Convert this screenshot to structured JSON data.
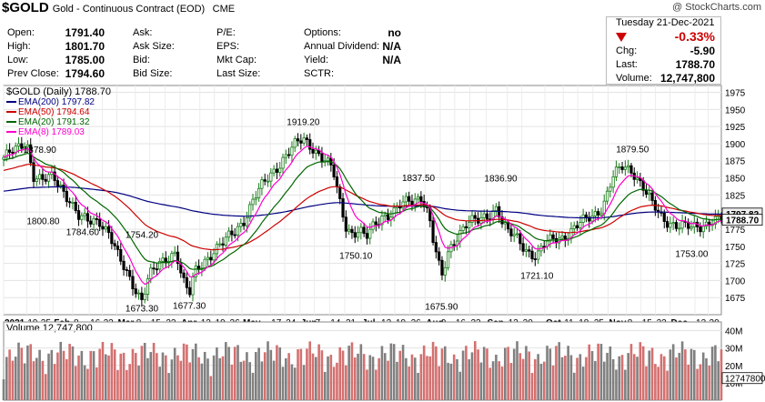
{
  "header": {
    "symbol": "$GOLD",
    "name": "Gold - Continuous Contract (EOD)",
    "exchange": "CME",
    "watermark": "@ StockCharts.com"
  },
  "quote": {
    "date": "Tuesday   21-Dec-2021",
    "change_pct": "-0.33%",
    "chg_label": "Chg:",
    "chg": "-5.90",
    "last_label": "Last:",
    "last": "1788.70",
    "volume_label": "Volume:",
    "volume": "12,747,800"
  },
  "stats": [
    {
      "label": "Open:",
      "value": "1791.40"
    },
    {
      "label": "High:",
      "value": "1801.70"
    },
    {
      "label": "Low:",
      "value": "1785.00"
    },
    {
      "label": "Prev Close:",
      "value": "1794.60"
    },
    {
      "label": "Ask:",
      "value": ""
    },
    {
      "label": "Ask Size:",
      "value": ""
    },
    {
      "label": "Bid:",
      "value": ""
    },
    {
      "label": "Bid Size:",
      "value": ""
    },
    {
      "label": "P/E:",
      "value": ""
    },
    {
      "label": "EPS:",
      "value": ""
    },
    {
      "label": "Mkt Cap:",
      "value": ""
    },
    {
      "label": "Last Size:",
      "value": ""
    },
    {
      "label": "Options:",
      "value": "no"
    },
    {
      "label": "Annual Dividend:",
      "value": "N/A"
    },
    {
      "label": "Yield:",
      "value": "N/A"
    },
    {
      "label": "SCTR:",
      "value": ""
    }
  ],
  "colors": {
    "ema200": "#000080",
    "ema50": "#cc0000",
    "ema20": "#006600",
    "ema8": "#ff00cc",
    "up": "#1a7d1a",
    "down": "#000000",
    "vol_up": "#808080",
    "vol_down": "#d47070",
    "down_arrow": "#cc0000"
  },
  "chart_data": {
    "type": "candlestick",
    "title": "$GOLD (Daily) 1788.70",
    "legend": [
      {
        "name": "EMA(200)",
        "value": "1797.82",
        "color": "#000080"
      },
      {
        "name": "EMA(50)",
        "value": "1794.64",
        "color": "#cc0000"
      },
      {
        "name": "EMA(20)",
        "value": "1791.32",
        "color": "#006600"
      },
      {
        "name": "EMA(8)",
        "value": "1789.03",
        "color": "#ff00cc"
      }
    ],
    "ylim": [
      1650,
      1985
    ],
    "yticks": [
      1675,
      1700,
      1725,
      1750,
      1775,
      1800,
      1825,
      1850,
      1875,
      1900,
      1925,
      1950,
      1975
    ],
    "last_price_tags": [
      "1797.82",
      "1788.70"
    ],
    "x_ticks": [
      {
        "label": "2021",
        "t": 0,
        "bold": true
      },
      {
        "label": "19",
        "t": 0.035
      },
      {
        "label": "25",
        "t": 0.055
      },
      {
        "label": "Feb",
        "t": 0.075,
        "bold": true
      },
      {
        "label": "8",
        "t": 0.105
      },
      {
        "label": "16",
        "t": 0.13
      },
      {
        "label": "22",
        "t": 0.15
      },
      {
        "label": "Mar",
        "t": 0.172,
        "bold": true
      },
      {
        "label": "8",
        "t": 0.2
      },
      {
        "label": "15",
        "t": 0.222
      },
      {
        "label": "22",
        "t": 0.245
      },
      {
        "label": "Apr",
        "t": 0.268,
        "bold": true
      },
      {
        "label": "12",
        "t": 0.298
      },
      {
        "label": "19",
        "t": 0.32
      },
      {
        "label": "26",
        "t": 0.342
      },
      {
        "label": "May",
        "t": 0.362,
        "bold": true
      },
      {
        "label": "17",
        "t": 0.405
      },
      {
        "label": "24",
        "t": 0.427
      },
      {
        "label": "Jun",
        "t": 0.45,
        "bold": true
      },
      {
        "label": "7",
        "t": 0.472
      },
      {
        "label": "14",
        "t": 0.495
      },
      {
        "label": "21",
        "t": 0.518
      },
      {
        "label": "Jul",
        "t": 0.543,
        "bold": true
      },
      {
        "label": "12",
        "t": 0.572
      },
      {
        "label": "19",
        "t": 0.594
      },
      {
        "label": "26",
        "t": 0.617
      },
      {
        "label": "Aug",
        "t": 0.64,
        "bold": true
      },
      {
        "label": "9",
        "t": 0.663
      },
      {
        "label": "16",
        "t": 0.685
      },
      {
        "label": "23",
        "t": 0.708
      },
      {
        "label": "Sep",
        "t": 0.733,
        "bold": true
      },
      {
        "label": "13",
        "t": 0.765
      },
      {
        "label": "20",
        "t": 0.787
      },
      {
        "label": "Oct",
        "t": 0.822,
        "bold": true
      },
      {
        "label": "11",
        "t": 0.85
      },
      {
        "label": "18",
        "t": 0.872
      },
      {
        "label": "25",
        "t": 0.895
      },
      {
        "label": "Nov",
        "t": 0.918,
        "bold": true
      },
      {
        "label": "8",
        "t": 0.946
      },
      {
        "label": "15",
        "t": 0.968
      },
      {
        "label": "22",
        "t": 0.99
      },
      {
        "label": "Dec",
        "t": 1.012,
        "bold": true
      },
      {
        "label": "13",
        "t": 1.05
      },
      {
        "label": "20",
        "t": 1.07
      }
    ],
    "price_path": [
      [
        0,
        1880
      ],
      [
        0.02,
        1890
      ],
      [
        0.035,
        1905
      ],
      [
        0.045,
        1855
      ],
      [
        0.06,
        1845
      ],
      [
        0.075,
        1850
      ],
      [
        0.085,
        1840
      ],
      [
        0.1,
        1820
      ],
      [
        0.115,
        1790
      ],
      [
        0.13,
        1785
      ],
      [
        0.145,
        1790
      ],
      [
        0.16,
        1770
      ],
      [
        0.175,
        1730
      ],
      [
        0.19,
        1705
      ],
      [
        0.2,
        1690
      ],
      [
        0.21,
        1673
      ],
      [
        0.22,
        1705
      ],
      [
        0.235,
        1720
      ],
      [
        0.25,
        1735
      ],
      [
        0.262,
        1745
      ],
      [
        0.272,
        1700
      ],
      [
        0.282,
        1677
      ],
      [
        0.29,
        1710
      ],
      [
        0.305,
        1730
      ],
      [
        0.32,
        1745
      ],
      [
        0.335,
        1755
      ],
      [
        0.35,
        1770
      ],
      [
        0.365,
        1790
      ],
      [
        0.38,
        1820
      ],
      [
        0.395,
        1840
      ],
      [
        0.41,
        1860
      ],
      [
        0.425,
        1880
      ],
      [
        0.44,
        1895
      ],
      [
        0.455,
        1905
      ],
      [
        0.47,
        1895
      ],
      [
        0.485,
        1880
      ],
      [
        0.5,
        1860
      ],
      [
        0.51,
        1815
      ],
      [
        0.52,
        1780
      ],
      [
        0.53,
        1770
      ],
      [
        0.54,
        1775
      ],
      [
        0.55,
        1760
      ],
      [
        0.56,
        1775
      ],
      [
        0.575,
        1795
      ],
      [
        0.59,
        1800
      ],
      [
        0.605,
        1810
      ],
      [
        0.62,
        1815
      ],
      [
        0.635,
        1825
      ],
      [
        0.645,
        1800
      ],
      [
        0.652,
        1760
      ],
      [
        0.66,
        1725
      ],
      [
        0.665,
        1700
      ],
      [
        0.675,
        1740
      ],
      [
        0.69,
        1770
      ],
      [
        0.705,
        1785
      ],
      [
        0.72,
        1785
      ],
      [
        0.735,
        1795
      ],
      [
        0.75,
        1810
      ],
      [
        0.755,
        1790
      ],
      [
        0.765,
        1770
      ],
      [
        0.78,
        1760
      ],
      [
        0.795,
        1745
      ],
      [
        0.81,
        1735
      ],
      [
        0.82,
        1750
      ],
      [
        0.835,
        1760
      ],
      [
        0.85,
        1765
      ],
      [
        0.865,
        1775
      ],
      [
        0.88,
        1785
      ],
      [
        0.895,
        1795
      ],
      [
        0.91,
        1810
      ],
      [
        0.925,
        1850
      ],
      [
        0.94,
        1865
      ],
      [
        0.955,
        1862
      ],
      [
        0.97,
        1840
      ],
      [
        0.985,
        1810
      ],
      [
        1.0,
        1790
      ],
      [
        1.015,
        1785
      ],
      [
        1.03,
        1780
      ],
      [
        1.045,
        1775
      ],
      [
        1.06,
        1780
      ],
      [
        1.075,
        1790
      ],
      [
        1.09,
        1789
      ]
    ],
    "annotations": [
      {
        "text": "1878.90",
        "t": 0.055,
        "v": 1878.9,
        "pos": "above"
      },
      {
        "text": "1800.80",
        "t": 0.06,
        "v": 1800.8,
        "pos": "below"
      },
      {
        "text": "1784.60",
        "t": 0.12,
        "v": 1784.6,
        "pos": "below"
      },
      {
        "text": "1754.20",
        "t": 0.21,
        "v": 1754.2,
        "pos": "above"
      },
      {
        "text": "1673.30",
        "t": 0.21,
        "v": 1673.3,
        "pos": "below"
      },
      {
        "text": "1677.30",
        "t": 0.282,
        "v": 1677.3,
        "pos": "below"
      },
      {
        "text": "1919.20",
        "t": 0.455,
        "v": 1919.2,
        "pos": "above"
      },
      {
        "text": "1750.10",
        "t": 0.535,
        "v": 1750.1,
        "pos": "below"
      },
      {
        "text": "1837.50",
        "t": 0.63,
        "v": 1837.5,
        "pos": "above"
      },
      {
        "text": "1675.90",
        "t": 0.665,
        "v": 1675.9,
        "pos": "below"
      },
      {
        "text": "1836.90",
        "t": 0.755,
        "v": 1836.9,
        "pos": "above"
      },
      {
        "text": "1721.10",
        "t": 0.81,
        "v": 1721.1,
        "pos": "below"
      },
      {
        "text": "1879.50",
        "t": 0.955,
        "v": 1879.5,
        "pos": "above"
      },
      {
        "text": "1753.00",
        "t": 1.045,
        "v": 1753.0,
        "pos": "below"
      }
    ],
    "volume_title": "Volume 12,747,800",
    "volume_yticks": [
      {
        "label": "40M",
        "v": 40
      },
      {
        "label": "30M",
        "v": 30
      },
      {
        "label": "20M",
        "v": 20
      },
      {
        "label": "10M",
        "v": 10
      }
    ],
    "volume_last_tag": "12747800",
    "volume_ylim": [
      0,
      45
    ]
  }
}
